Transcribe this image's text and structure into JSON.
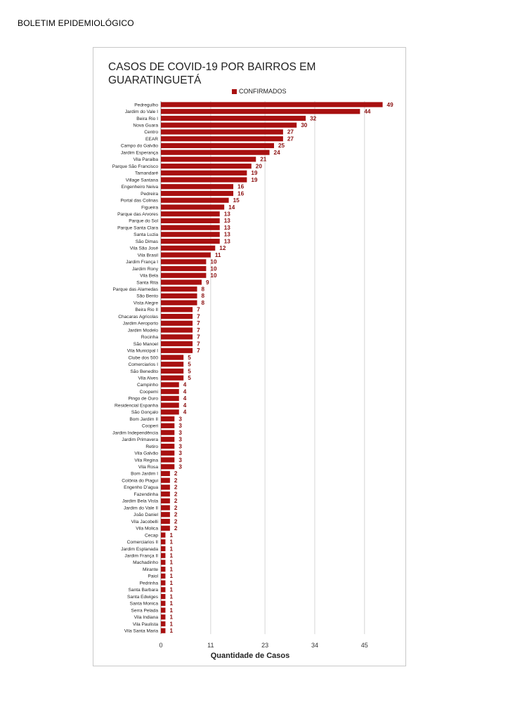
{
  "document": {
    "header": "BOLETIM EPIDEMIOLÓGICO"
  },
  "chart_data": {
    "type": "bar",
    "orientation": "horizontal",
    "title": "CASOS DE COVID-19 POR BAIRROS EM GUARATINGUETÁ",
    "title_lines": [
      "CASOS DE COVID-19 POR BAIRROS EM",
      "GUARATINGUETÁ"
    ],
    "xlabel": "Quantidade de Casos",
    "ylabel": "",
    "legend": {
      "position": "top",
      "entries": [
        "CONFIRMADOS"
      ]
    },
    "bar_color": "#a81010",
    "label_color": "#8b1010",
    "grid": true,
    "xlim": [
      0,
      50
    ],
    "x_ticks": [
      0,
      11,
      23,
      34,
      45
    ],
    "categories": [
      "Pedregulho",
      "Jardim do Vale I",
      "Beira Rio I",
      "Nova Guara",
      "Centro",
      "EEAR",
      "Campo do Galvão",
      "Jardim Esperança",
      "Vila Paraiba",
      "Parque São Francisco",
      "Tamandaré",
      "Village Santana",
      "Engenheiro Neiva",
      "Pedreira",
      "Portal das Colinas",
      "Figueira",
      "Parque das Arvores",
      "Parque do Sol",
      "Parque Santa Clara",
      "Santa Luzia",
      "São Dimas",
      "Vila São José",
      "Vila Brasil",
      "Jardim França I",
      "Jardim Rony",
      "Vila Bela",
      "Santa Rita",
      "Parque das Alamedas",
      "São Bento",
      "Vista Alegre",
      "Beira Rio II",
      "Chacaras Agricolas",
      "Jardim Aeroporto",
      "Jardim Modelo",
      "Rocinha",
      "São Manoel",
      "Vila Municipal I",
      "Clube dos 500",
      "Comerciarios I",
      "São Benedito",
      "Vila Alves",
      "Campinho",
      "Coopemi",
      "Pingo de Ouro",
      "Residencial Espanha",
      "São Gonçalo",
      "Bom Jardim II",
      "Cooperi",
      "Jardim Independência",
      "Jardim Primavera",
      "Retiro",
      "Vila Galvão",
      "Vila Regina",
      "Vila Rosa",
      "Bom Jardim I",
      "Colônia do Piagui",
      "Engenho D'agua",
      "Fazendinha",
      "Jardim Bela Vista",
      "Jardim do Vale II",
      "João Daniel",
      "Vila Jacobelli",
      "Vila Molica",
      "Cecap",
      "Comerciarios II",
      "Jardim Esplanada",
      "Jardim França II",
      "Machadinho",
      "Mirante",
      "Paiol",
      "Pedrinha",
      "Santa Barbara",
      "Santa Edwiges",
      "Santa Monica",
      "Serra Pelada",
      "Vila Indiana",
      "Vila Paulista",
      "Vila Santa Maria"
    ],
    "series": [
      {
        "name": "CONFIRMADOS",
        "values": [
          49,
          44,
          32,
          30,
          27,
          27,
          25,
          24,
          21,
          20,
          19,
          19,
          16,
          16,
          15,
          14,
          13,
          13,
          13,
          13,
          13,
          12,
          11,
          10,
          10,
          10,
          9,
          8,
          8,
          8,
          7,
          7,
          7,
          7,
          7,
          7,
          7,
          5,
          5,
          5,
          5,
          4,
          4,
          4,
          4,
          4,
          3,
          3,
          3,
          3,
          3,
          3,
          3,
          3,
          2,
          2,
          2,
          2,
          2,
          2,
          2,
          2,
          2,
          1,
          1,
          1,
          1,
          1,
          1,
          1,
          1,
          1,
          1,
          1,
          1,
          1,
          1,
          1
        ]
      }
    ]
  }
}
